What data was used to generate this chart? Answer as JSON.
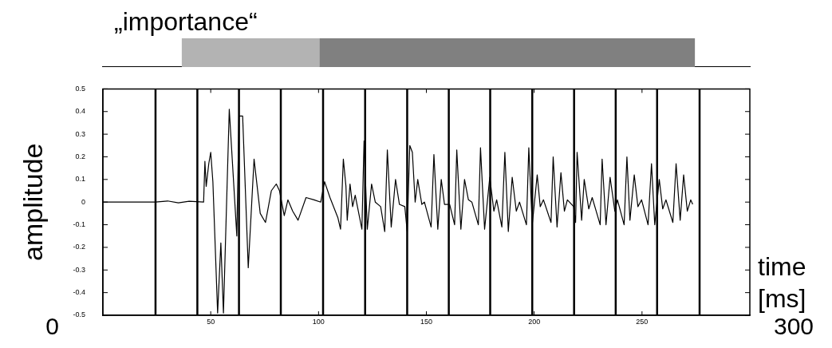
{
  "chart_data": [
    {
      "type": "bar",
      "title": "„importance“",
      "orientation": "horizontal",
      "categories": [
        null
      ],
      "xlim": [
        0,
        300
      ],
      "tick_labels": false,
      "series": [
        {
          "color": "#b3b3b3",
          "base": [
            36.7
          ],
          "values": [
            63.7
          ]
        },
        {
          "color": "#808080",
          "base": [
            100.4
          ],
          "values": [
            174
          ]
        }
      ]
    },
    {
      "type": "line",
      "xlabel": "time [ms]",
      "ylabel": "amplitude",
      "annotations": [
        "0",
        "300"
      ],
      "xlim": [
        0,
        300
      ],
      "xticks": [
        50,
        100,
        150,
        200,
        250
      ],
      "ylim": [
        -0.5,
        0.5
      ],
      "yticks": [
        -0.5,
        -0.4,
        -0.3,
        -0.2,
        -0.1,
        0,
        0.1,
        0.2,
        0.3,
        0.4,
        0.5
      ],
      "marker": "none",
      "line_style": "solid",
      "series": [
        {
          "color": "#000000",
          "x": [
            0,
            24.4,
            30,
            35,
            40,
            46.7,
            47.3,
            47.9,
            49.1,
            50,
            51,
            53.2,
            54.7,
            55.9,
            58.6,
            62.1,
            63.1,
            64.8,
            67.4,
            70.1,
            72.96,
            75.4,
            78.1,
            80.4,
            81.9,
            84.1,
            85.8,
            88,
            90.5,
            94.2,
            97.9,
            101,
            102.8,
            105.3,
            109,
            110.2,
            111.5,
            112.7,
            113.3,
            114.6,
            115.8,
            117,
            120.1,
            121.1,
            122.6,
            124.6,
            126.3,
            128.8,
            130.7,
            131.9,
            133.7,
            135.7,
            137.5,
            140,
            141.1,
            142.3,
            143.5,
            144.8,
            146,
            147.9,
            149.1,
            152.2,
            153.5,
            155.3,
            156.9,
            158.4,
            160.8,
            163.1,
            164.1,
            166,
            167.7,
            169.5,
            171.1,
            174.1,
            175.1,
            177,
            179.4,
            181.3,
            182.6,
            185,
            186.4,
            188,
            189.8,
            191.7,
            193.2,
            196.4,
            197.5,
            199.1,
            201.4,
            202.8,
            204.3,
            207.8,
            208.8,
            210.6,
            212.4,
            214,
            215.4,
            218.3,
            219.2,
            219.9,
            222,
            223.2,
            225.3,
            226.9,
            230.6,
            231.5,
            233.3,
            235.2,
            237.4,
            238.6,
            241.7,
            243,
            244.4,
            246.4,
            248.1,
            249.8,
            252.8,
            254.4,
            255.9,
            258,
            259.6,
            261.1,
            264.3,
            265.8,
            267.7,
            269.3,
            271,
            272.6,
            273.5
          ],
          "values": [
            0,
            0,
            0.005,
            -0.003,
            0.004,
            0,
            0.18,
            0.07,
            0.17,
            0.22,
            0.09,
            -0.49,
            -0.18,
            -0.49,
            0.41,
            -0.15,
            0.38,
            0.38,
            -0.29,
            0.19,
            -0.05,
            -0.09,
            0.05,
            0.08,
            0.05,
            -0.06,
            0.01,
            -0.04,
            -0.08,
            0.02,
            0.01,
            0,
            0.09,
            0.02,
            -0.07,
            -0.12,
            0.19,
            0.07,
            -0.08,
            0.08,
            -0.02,
            0.03,
            -0.12,
            0.27,
            -0.12,
            0.08,
            0,
            -0.02,
            -0.13,
            0.23,
            -0.11,
            0.1,
            -0.01,
            -0.02,
            -0.13,
            0.25,
            0.22,
            0,
            0.1,
            -0.01,
            0,
            -0.11,
            0.21,
            -0.12,
            0.1,
            -0.01,
            -0.01,
            -0.1,
            0.23,
            -0.12,
            0.1,
            0.01,
            0,
            -0.1,
            0.24,
            -0.12,
            0.11,
            -0.04,
            0.01,
            -0.11,
            0.22,
            -0.13,
            0.11,
            -0.04,
            0,
            -0.1,
            0.24,
            -0.1,
            0.12,
            -0.02,
            0.01,
            -0.09,
            0.2,
            -0.11,
            0.13,
            -0.04,
            0.01,
            -0.02,
            -0.09,
            0.22,
            -0.08,
            0.1,
            -0.03,
            0.02,
            -0.1,
            0.19,
            -0.1,
            0.11,
            -0.04,
            0.01,
            -0.1,
            0.2,
            -0.08,
            0.12,
            -0.02,
            0.01,
            -0.1,
            0.17,
            -0.1,
            0.1,
            -0.03,
            0.01,
            -0.09,
            0.17,
            -0.08,
            0.12,
            -0.04,
            0.01,
            -0.01
          ]
        }
      ],
      "ref_lines": [
        {
          "axis": "x",
          "value": 24.4,
          "color": "#000000"
        },
        {
          "axis": "x",
          "value": 43.8,
          "color": "#000000"
        },
        {
          "axis": "x",
          "value": 63.1,
          "color": "#000000"
        },
        {
          "axis": "x",
          "value": 82.5,
          "color": "#000000"
        },
        {
          "axis": "x",
          "value": 102.1,
          "color": "#000000"
        },
        {
          "axis": "x",
          "value": 121.6,
          "color": "#000000"
        },
        {
          "axis": "x",
          "value": 141.1,
          "color": "#000000"
        },
        {
          "axis": "x",
          "value": 160.4,
          "color": "#000000"
        },
        {
          "axis": "x",
          "value": 179.6,
          "color": "#000000"
        },
        {
          "axis": "x",
          "value": 199.1,
          "color": "#000000"
        },
        {
          "axis": "x",
          "value": 218.5,
          "color": "#000000"
        },
        {
          "axis": "x",
          "value": 237.8,
          "color": "#000000"
        },
        {
          "axis": "x",
          "value": 257,
          "color": "#000000"
        },
        {
          "axis": "x",
          "value": 276.7,
          "color": "#000000"
        }
      ]
    }
  ]
}
